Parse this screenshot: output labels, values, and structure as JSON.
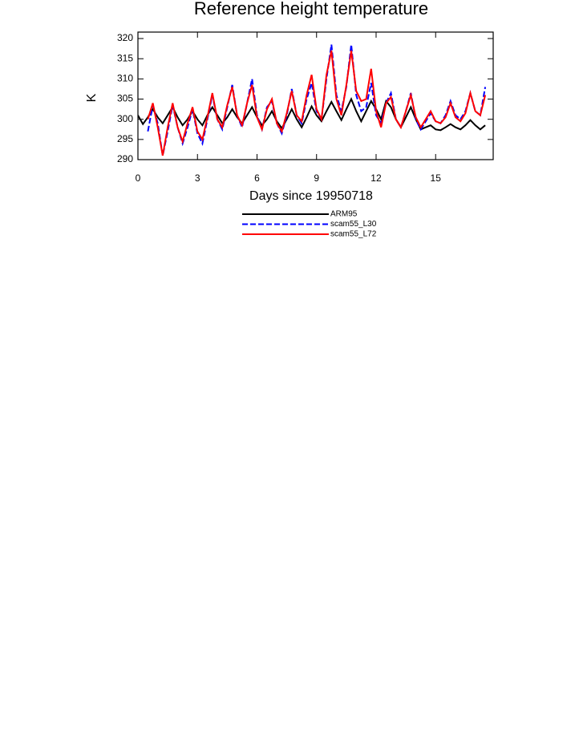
{
  "chart_data": {
    "type": "line",
    "title": "Reference height temperature",
    "x_label": "Days since 19950718",
    "y_label": "K",
    "x": [
      0,
      0.25,
      0.5,
      0.75,
      1,
      1.25,
      1.5,
      1.75,
      2,
      2.25,
      2.5,
      2.75,
      3,
      3.25,
      3.5,
      3.75,
      4,
      4.25,
      4.5,
      4.75,
      5,
      5.25,
      5.5,
      5.75,
      6,
      6.25,
      6.5,
      6.75,
      7,
      7.25,
      7.5,
      7.75,
      8,
      8.25,
      8.5,
      8.75,
      9,
      9.25,
      9.5,
      9.75,
      10,
      10.25,
      10.5,
      10.75,
      11,
      11.25,
      11.5,
      11.75,
      12,
      12.25,
      12.5,
      12.75,
      13,
      13.25,
      13.5,
      13.75,
      14,
      14.25,
      14.5,
      14.75,
      15,
      15.25,
      15.5,
      15.75,
      16,
      16.25,
      16.5,
      16.75,
      17,
      17.25,
      17.5
    ],
    "series": [
      {
        "name": "ARM95",
        "color": "#000000",
        "dashed": false,
        "values": [
          301,
          298.8,
          300.5,
          302.5,
          300.5,
          299,
          301,
          303,
          300.5,
          298.5,
          300,
          302,
          300,
          298.5,
          301,
          303,
          301,
          299,
          300.5,
          302.5,
          300.5,
          299,
          301,
          303,
          300.5,
          298.5,
          300,
          302,
          299.5,
          297.8,
          300,
          302.5,
          300,
          298,
          300.5,
          303.2,
          301,
          299.5,
          302,
          304.3,
          302,
          299.8,
          302.5,
          305,
          302,
          299.5,
          302,
          304.5,
          302.5,
          300,
          304.5,
          303,
          300,
          298,
          300.5,
          303,
          300,
          297.5,
          298,
          298.5,
          297.5,
          297.3,
          298,
          298.8,
          298,
          297.5,
          298.5,
          299.8,
          298.5,
          297.5,
          298.5
        ]
      },
      {
        "name": "scam55_L30",
        "color": "#0000ff",
        "dashed": true,
        "values": [
          null,
          null,
          297,
          303.5,
          299,
          291,
          297,
          303.5,
          298,
          294,
          298,
          302.5,
          296.5,
          294,
          300,
          306,
          300,
          297.5,
          303,
          308.5,
          301,
          298,
          304,
          310,
          301,
          297.5,
          303,
          304.5,
          299,
          296.5,
          301,
          307.5,
          301,
          299,
          305,
          309,
          302,
          300,
          310,
          318.5,
          306,
          302,
          308,
          318.5,
          306,
          302,
          303,
          309,
          301,
          299,
          304,
          306.5,
          300,
          298,
          302,
          306.5,
          300,
          297.5,
          299.5,
          301.5,
          299.5,
          299,
          301,
          304.5,
          301,
          300,
          302,
          306.5,
          302,
          301,
          308
        ]
      },
      {
        "name": "scam55_L72",
        "color": "#ff0000",
        "dashed": false,
        "values": [
          null,
          null,
          300,
          304,
          298,
          291,
          298,
          304,
          298,
          294.5,
          299,
          303,
          297,
          295,
          300.5,
          306.5,
          300,
          298,
          303.5,
          308,
          301,
          298.5,
          304,
          308.5,
          300.5,
          297.5,
          302.5,
          305,
          299,
          297,
          301.5,
          307,
          301,
          299.5,
          306,
          311,
          302.5,
          300,
          311,
          317,
          305,
          301,
          308.5,
          317,
          307,
          304.5,
          305,
          312.5,
          302,
          298,
          304,
          305.5,
          300,
          298,
          302,
          306,
          300.5,
          298,
          300,
          302,
          299.5,
          299,
          300.5,
          304,
          300.5,
          299.5,
          301.5,
          306.5,
          302,
          301,
          306
        ]
      }
    ],
    "xlim": [
      0,
      17.9
    ],
    "ylim": [
      290,
      321.6
    ],
    "xticks": [
      0,
      3,
      6,
      9,
      12,
      15
    ],
    "yticks": [
      290,
      295,
      300,
      305,
      310,
      315,
      320
    ]
  }
}
